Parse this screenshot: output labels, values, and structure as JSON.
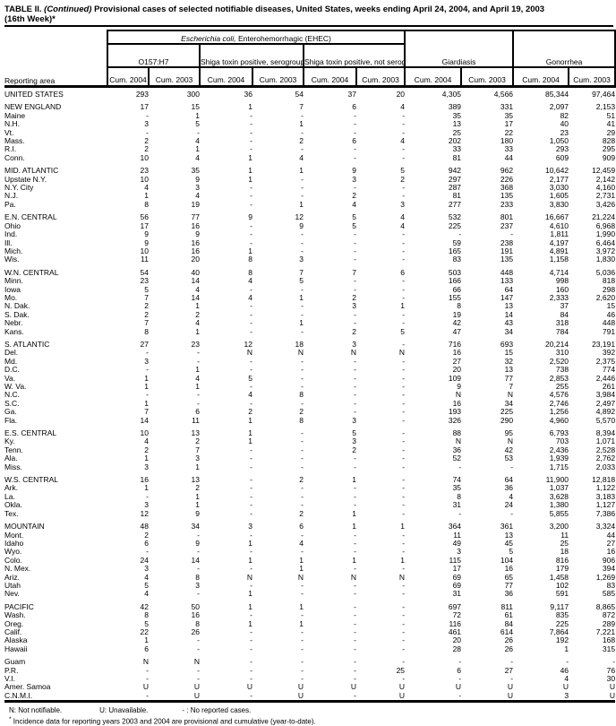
{
  "title": {
    "prefix": "TABLE II. ",
    "continued": "(Continued)",
    "rest": " Provisional cases of selected notifiable diseases, United States, weeks ending April 24, 2004, and April 19, 2003",
    "line2": "(16th Week)*"
  },
  "header": {
    "reporting_area": "Reporting area",
    "ehec_italic": "Escherichia coli,",
    "ehec_rest": " Enterohemorrhagic (EHEC)",
    "subgroup_o157": "O157:H7",
    "subgroup_non_o157": "Shiga toxin positive,\nserogroup non-O157",
    "subgroup_not_serogrouped": "Shiga toxin positive,\nnot serogrouped",
    "giardiasis": "Giardiasis",
    "gonorrhea": "Gonorrhea",
    "columns": [
      {
        "label": "Cum.\n2004"
      },
      {
        "label": "Cum.\n2003"
      },
      {
        "label": "Cum.\n2004"
      },
      {
        "label": "Cum.\n2003"
      },
      {
        "label": "Cum.\n2004"
      },
      {
        "label": "Cum.\n2003"
      },
      {
        "label": "Cum.\n2004"
      },
      {
        "label": "Cum.\n2003"
      },
      {
        "label": "Cum.\n2004"
      },
      {
        "label": "Cum.\n2003"
      }
    ]
  },
  "table": {
    "sections": [
      {
        "rows": [
          [
            "UNITED STATES",
            "293",
            "300",
            "36",
            "54",
            "37",
            "20",
            "4,305",
            "4,566",
            "85,344",
            "97,464"
          ]
        ]
      },
      {
        "rows": [
          [
            "NEW ENGLAND",
            "17",
            "15",
            "1",
            "7",
            "6",
            "4",
            "389",
            "331",
            "2,097",
            "2,153"
          ],
          [
            "Maine",
            "-",
            "1",
            "-",
            "-",
            "-",
            "-",
            "35",
            "35",
            "82",
            "51"
          ],
          [
            "N.H.",
            "3",
            "5",
            "-",
            "1",
            "-",
            "-",
            "13",
            "17",
            "40",
            "41"
          ],
          [
            "Vt.",
            "-",
            "-",
            "-",
            "-",
            "-",
            "-",
            "25",
            "22",
            "23",
            "29"
          ],
          [
            "Mass.",
            "2",
            "4",
            "-",
            "2",
            "6",
            "4",
            "202",
            "180",
            "1,050",
            "828"
          ],
          [
            "R.I.",
            "2",
            "1",
            "-",
            "-",
            "-",
            "-",
            "33",
            "33",
            "293",
            "295"
          ],
          [
            "Conn.",
            "10",
            "4",
            "1",
            "4",
            "-",
            "-",
            "81",
            "44",
            "609",
            "909"
          ]
        ]
      },
      {
        "rows": [
          [
            "MID. ATLANTIC",
            "23",
            "35",
            "1",
            "1",
            "9",
            "5",
            "942",
            "962",
            "10,642",
            "12,459"
          ],
          [
            "Upstate N.Y.",
            "10",
            "9",
            "1",
            "-",
            "3",
            "2",
            "297",
            "226",
            "2,177",
            "2,142"
          ],
          [
            "N.Y. City",
            "4",
            "3",
            "-",
            "-",
            "-",
            "-",
            "287",
            "368",
            "3,030",
            "4,160"
          ],
          [
            "N.J.",
            "1",
            "4",
            "-",
            "-",
            "2",
            "-",
            "81",
            "135",
            "1,605",
            "2,731"
          ],
          [
            "Pa.",
            "8",
            "19",
            "-",
            "1",
            "4",
            "3",
            "277",
            "233",
            "3,830",
            "3,426"
          ]
        ]
      },
      {
        "rows": [
          [
            "E.N. CENTRAL",
            "56",
            "77",
            "9",
            "12",
            "5",
            "4",
            "532",
            "801",
            "16,667",
            "21,224"
          ],
          [
            "Ohio",
            "17",
            "16",
            "-",
            "9",
            "5",
            "4",
            "225",
            "237",
            "4,610",
            "6,968"
          ],
          [
            "Ind.",
            "9",
            "9",
            "-",
            "-",
            "-",
            "-",
            "-",
            "-",
            "1,811",
            "1,990"
          ],
          [
            "Ill.",
            "9",
            "16",
            "-",
            "-",
            "-",
            "-",
            "59",
            "238",
            "4,197",
            "6,464"
          ],
          [
            "Mich.",
            "10",
            "16",
            "1",
            "-",
            "-",
            "-",
            "165",
            "191",
            "4,891",
            "3,972"
          ],
          [
            "Wis.",
            "11",
            "20",
            "8",
            "3",
            "-",
            "-",
            "83",
            "135",
            "1,158",
            "1,830"
          ]
        ]
      },
      {
        "rows": [
          [
            "W.N. CENTRAL",
            "54",
            "40",
            "8",
            "7",
            "7",
            "6",
            "503",
            "448",
            "4,714",
            "5,036"
          ],
          [
            "Minn.",
            "23",
            "14",
            "4",
            "5",
            "-",
            "-",
            "166",
            "133",
            "998",
            "818"
          ],
          [
            "Iowa",
            "5",
            "4",
            "-",
            "-",
            "-",
            "-",
            "66",
            "64",
            "160",
            "298"
          ],
          [
            "Mo.",
            "7",
            "14",
            "4",
            "1",
            "2",
            "-",
            "155",
            "147",
            "2,333",
            "2,620"
          ],
          [
            "N. Dak.",
            "2",
            "1",
            "-",
            "-",
            "3",
            "1",
            "8",
            "13",
            "37",
            "15"
          ],
          [
            "S. Dak.",
            "2",
            "2",
            "-",
            "-",
            "-",
            "-",
            "19",
            "14",
            "84",
            "46"
          ],
          [
            "Nebr.",
            "7",
            "4",
            "-",
            "1",
            "-",
            "-",
            "42",
            "43",
            "318",
            "448"
          ],
          [
            "Kans.",
            "8",
            "1",
            "-",
            "-",
            "2",
            "5",
            "47",
            "34",
            "784",
            "791"
          ]
        ]
      },
      {
        "rows": [
          [
            "S. ATLANTIC",
            "27",
            "23",
            "12",
            "18",
            "3",
            "-",
            "716",
            "693",
            "20,214",
            "23,191"
          ],
          [
            "Del.",
            "-",
            "-",
            "N",
            "N",
            "N",
            "N",
            "16",
            "15",
            "310",
            "392"
          ],
          [
            "Md.",
            "3",
            "-",
            "-",
            "-",
            "-",
            "-",
            "27",
            "32",
            "2,520",
            "2,375"
          ],
          [
            "D.C.",
            "-",
            "1",
            "-",
            "-",
            "-",
            "-",
            "20",
            "13",
            "738",
            "774"
          ],
          [
            "Va.",
            "1",
            "4",
            "5",
            "-",
            "-",
            "-",
            "109",
            "77",
            "2,853",
            "2,446"
          ],
          [
            "W. Va.",
            "1",
            "1",
            "-",
            "-",
            "-",
            "-",
            "9",
            "7",
            "255",
            "261"
          ],
          [
            "N.C.",
            "-",
            "-",
            "4",
            "8",
            "-",
            "-",
            "N",
            "N",
            "4,576",
            "3,984"
          ],
          [
            "S.C.",
            "1",
            "-",
            "-",
            "-",
            "-",
            "-",
            "16",
            "34",
            "2,746",
            "2,497"
          ],
          [
            "Ga.",
            "7",
            "6",
            "2",
            "2",
            "-",
            "-",
            "193",
            "225",
            "1,256",
            "4,892"
          ],
          [
            "Fla.",
            "14",
            "11",
            "1",
            "8",
            "3",
            "-",
            "326",
            "290",
            "4,960",
            "5,570"
          ]
        ]
      },
      {
        "rows": [
          [
            "E.S. CENTRAL",
            "10",
            "13",
            "1",
            "-",
            "5",
            "-",
            "88",
            "95",
            "6,793",
            "8,394"
          ],
          [
            "Ky.",
            "4",
            "2",
            "1",
            "-",
            "3",
            "-",
            "N",
            "N",
            "703",
            "1,071"
          ],
          [
            "Tenn.",
            "2",
            "7",
            "-",
            "-",
            "2",
            "-",
            "36",
            "42",
            "2,436",
            "2,528"
          ],
          [
            "Ala.",
            "1",
            "3",
            "-",
            "-",
            "-",
            "-",
            "52",
            "53",
            "1,939",
            "2,762"
          ],
          [
            "Miss.",
            "3",
            "1",
            "-",
            "-",
            "-",
            "-",
            "-",
            "-",
            "1,715",
            "2,033"
          ]
        ]
      },
      {
        "rows": [
          [
            "W.S. CENTRAL",
            "16",
            "13",
            "-",
            "2",
            "1",
            "-",
            "74",
            "64",
            "11,900",
            "12,818"
          ],
          [
            "Ark.",
            "1",
            "2",
            "-",
            "-",
            "-",
            "-",
            "35",
            "36",
            "1,037",
            "1,122"
          ],
          [
            "La.",
            "-",
            "1",
            "-",
            "-",
            "-",
            "-",
            "8",
            "4",
            "3,628",
            "3,183"
          ],
          [
            "Okla.",
            "3",
            "1",
            "-",
            "-",
            "-",
            "-",
            "31",
            "24",
            "1,380",
            "1,127"
          ],
          [
            "Tex.",
            "12",
            "9",
            "-",
            "2",
            "1",
            "-",
            "-",
            "-",
            "5,855",
            "7,386"
          ]
        ]
      },
      {
        "rows": [
          [
            "MOUNTAIN",
            "48",
            "34",
            "3",
            "6",
            "1",
            "1",
            "364",
            "361",
            "3,200",
            "3,324"
          ],
          [
            "Mont.",
            "2",
            "-",
            "-",
            "-",
            "-",
            "-",
            "11",
            "13",
            "11",
            "44"
          ],
          [
            "Idaho",
            "6",
            "9",
            "1",
            "4",
            "-",
            "-",
            "49",
            "45",
            "25",
            "27"
          ],
          [
            "Wyo.",
            "-",
            "-",
            "-",
            "-",
            "-",
            "-",
            "3",
            "5",
            "18",
            "16"
          ],
          [
            "Colo.",
            "24",
            "14",
            "1",
            "1",
            "1",
            "1",
            "115",
            "104",
            "816",
            "906"
          ],
          [
            "N. Mex.",
            "3",
            "-",
            "-",
            "1",
            "-",
            "-",
            "17",
            "16",
            "179",
            "394"
          ],
          [
            "Ariz.",
            "4",
            "8",
            "N",
            "N",
            "N",
            "N",
            "69",
            "65",
            "1,458",
            "1,269"
          ],
          [
            "Utah",
            "5",
            "3",
            "-",
            "-",
            "-",
            "-",
            "69",
            "77",
            "102",
            "83"
          ],
          [
            "Nev.",
            "4",
            "-",
            "1",
            "-",
            "-",
            "-",
            "31",
            "36",
            "591",
            "585"
          ]
        ]
      },
      {
        "rows": [
          [
            "PACIFIC",
            "42",
            "50",
            "1",
            "1",
            "-",
            "-",
            "697",
            "811",
            "9,117",
            "8,865"
          ],
          [
            "Wash.",
            "8",
            "16",
            "-",
            "-",
            "-",
            "-",
            "72",
            "61",
            "835",
            "872"
          ],
          [
            "Oreg.",
            "5",
            "8",
            "1",
            "1",
            "-",
            "-",
            "116",
            "84",
            "225",
            "289"
          ],
          [
            "Calif.",
            "22",
            "26",
            "-",
            "-",
            "-",
            "-",
            "461",
            "614",
            "7,864",
            "7,221"
          ],
          [
            "Alaska",
            "1",
            "-",
            "-",
            "-",
            "-",
            "-",
            "20",
            "26",
            "192",
            "168"
          ],
          [
            "Hawaii",
            "6",
            "-",
            "-",
            "-",
            "-",
            "-",
            "28",
            "26",
            "1",
            "315"
          ]
        ]
      },
      {
        "rows": [
          [
            "Guam",
            "N",
            "N",
            "-",
            "-",
            "-",
            "-",
            "-",
            "-",
            "-",
            "-"
          ],
          [
            "P.R.",
            "-",
            "-",
            "-",
            "-",
            "-",
            "25",
            "6",
            "27",
            "46",
            "76"
          ],
          [
            "V.I.",
            "-",
            "-",
            "-",
            "-",
            "-",
            "-",
            "-",
            "-",
            "4",
            "30"
          ],
          [
            "Amer. Samoa",
            "U",
            "U",
            "U",
            "U",
            "U",
            "U",
            "U",
            "U",
            "U",
            "U"
          ],
          [
            "C.N.M.I.",
            "-",
            "U",
            "-",
            "U",
            "-",
            "U",
            "-",
            "U",
            "3",
            "U"
          ]
        ]
      }
    ]
  },
  "footnotes": {
    "n": "N: Not notifiable.",
    "u": "U: Unavailable.",
    "dash": "- : No reported cases.",
    "star_mark": "*",
    "star_text": " Incidence data for reporting years 2003 and 2004 are provisional and cumulative (year-to-date)."
  }
}
